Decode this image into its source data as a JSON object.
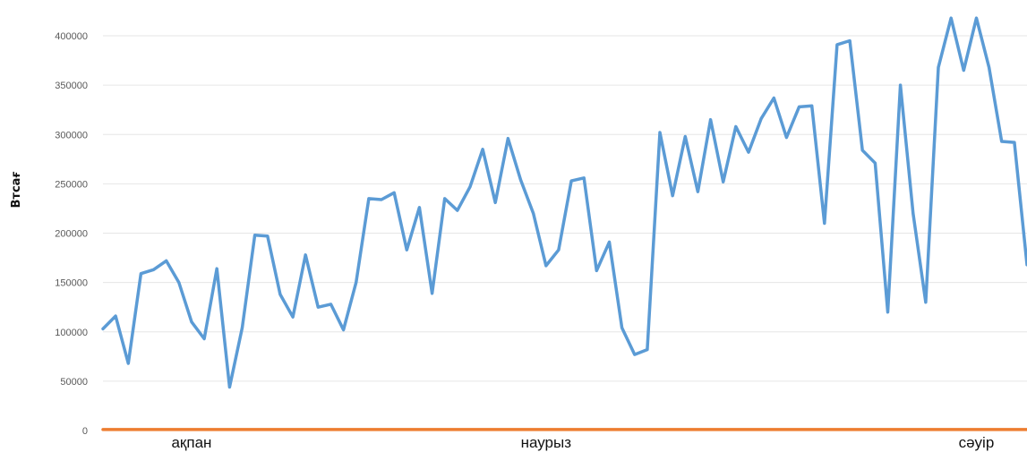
{
  "chart_data": {
    "type": "line",
    "title": "",
    "xlabel": "",
    "ylabel": "Втсағ",
    "ylim": [
      0,
      420000
    ],
    "yticks": [
      0,
      50000,
      100000,
      150000,
      200000,
      250000,
      300000,
      350000,
      400000
    ],
    "ytick_labels": [
      "0",
      "50000",
      "100000",
      "150000",
      "200000",
      "250000",
      "300000",
      "350000",
      "400000"
    ],
    "x_labels": [
      {
        "label": "ақпан",
        "index": 7
      },
      {
        "label": "наурыз",
        "index": 35
      },
      {
        "label": "сәуір",
        "index": 69
      }
    ],
    "grid": true,
    "legend": "none",
    "series": [
      {
        "color": "#5b9bd5",
        "values": [
          103000,
          116000,
          68000,
          159000,
          163000,
          172000,
          150000,
          110000,
          93000,
          164000,
          44000,
          104000,
          198000,
          197000,
          138000,
          115000,
          178000,
          125000,
          128000,
          102000,
          150000,
          235000,
          234000,
          241000,
          183000,
          226000,
          139000,
          235000,
          223000,
          247000,
          285000,
          231000,
          296000,
          254000,
          220000,
          167000,
          183000,
          253000,
          256000,
          162000,
          191000,
          104000,
          77000,
          82000,
          302000,
          238000,
          298000,
          242000,
          315000,
          252000,
          308000,
          282000,
          316000,
          337000,
          297000,
          328000,
          329000,
          210000,
          391000,
          395000,
          284000,
          271000,
          120000,
          350000,
          220000,
          130000,
          368000,
          418000,
          365000,
          418000,
          368000,
          293000,
          292000,
          168000
        ]
      },
      {
        "color": "#ed7d31",
        "values": [
          1000,
          1000,
          1000,
          1000,
          1000,
          1000,
          1000,
          1000,
          1000,
          1000,
          1000,
          1000,
          1000,
          1000,
          1000,
          1000,
          1000,
          1000,
          1000,
          1000,
          1000,
          1000,
          1000,
          1000,
          1000,
          1000,
          1000,
          1000,
          1000,
          1000,
          1000,
          1000,
          1000,
          1000,
          1000,
          1000,
          1000,
          1000,
          1000,
          1000,
          1000,
          1000,
          1000,
          1000,
          1000,
          1000,
          1000,
          1000,
          1000,
          1000,
          1000,
          1000,
          1000,
          1000,
          1000,
          1000,
          1000,
          1000,
          1000,
          1000,
          1000,
          1000,
          1000,
          1000,
          1000,
          1000,
          1000,
          1000,
          1000,
          1000,
          1000,
          1000,
          1000,
          1000
        ]
      }
    ]
  }
}
